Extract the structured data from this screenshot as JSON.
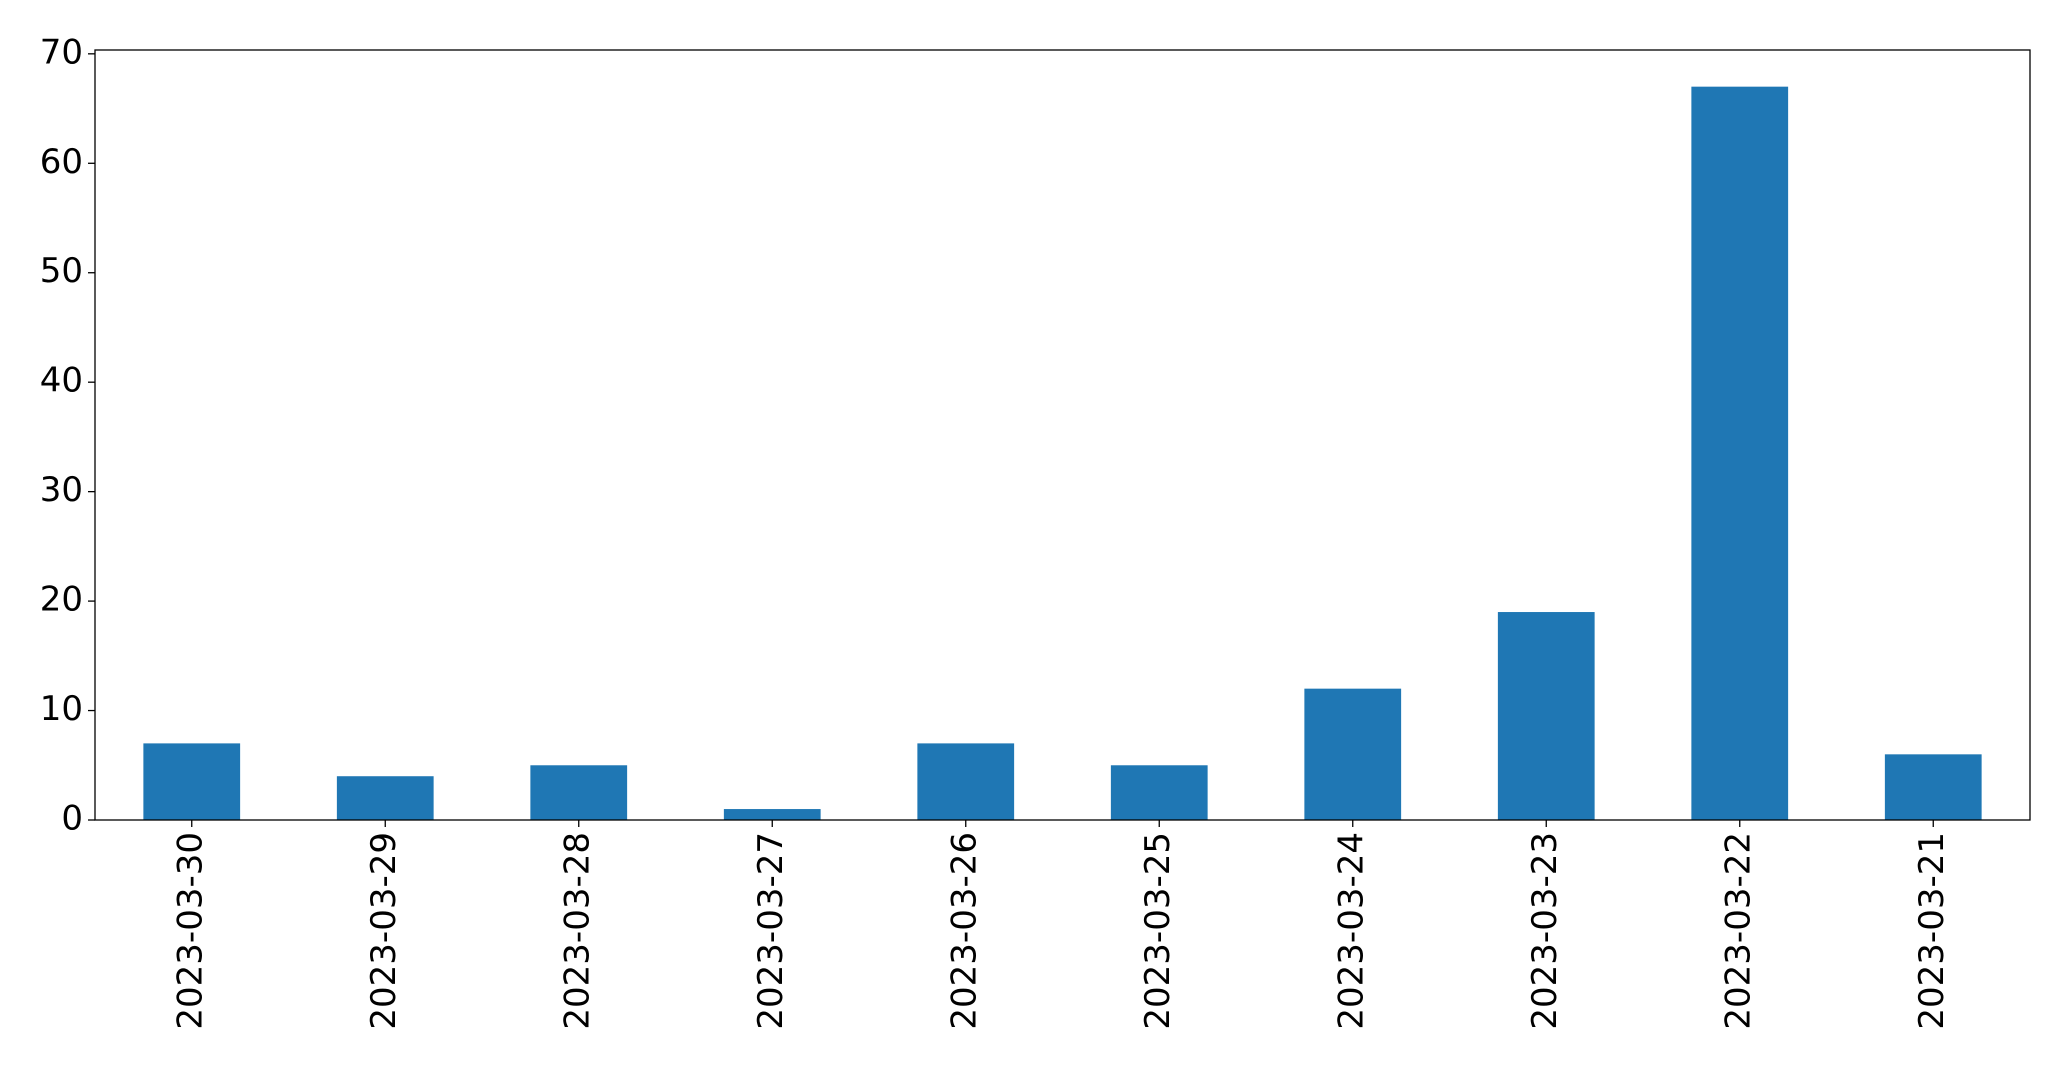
{
  "chart_data": {
    "type": "bar",
    "categories": [
      "2023-03-30",
      "2023-03-29",
      "2023-03-28",
      "2023-03-27",
      "2023-03-26",
      "2023-03-25",
      "2023-03-24",
      "2023-03-23",
      "2023-03-22",
      "2023-03-21"
    ],
    "values": [
      7,
      4,
      5,
      1,
      7,
      5,
      12,
      19,
      67,
      6
    ],
    "color": "#1f77b4",
    "ylim": [
      0,
      70.35
    ],
    "yticks": [
      0,
      10,
      20,
      30,
      40,
      50,
      60,
      70
    ],
    "grid": false
  }
}
